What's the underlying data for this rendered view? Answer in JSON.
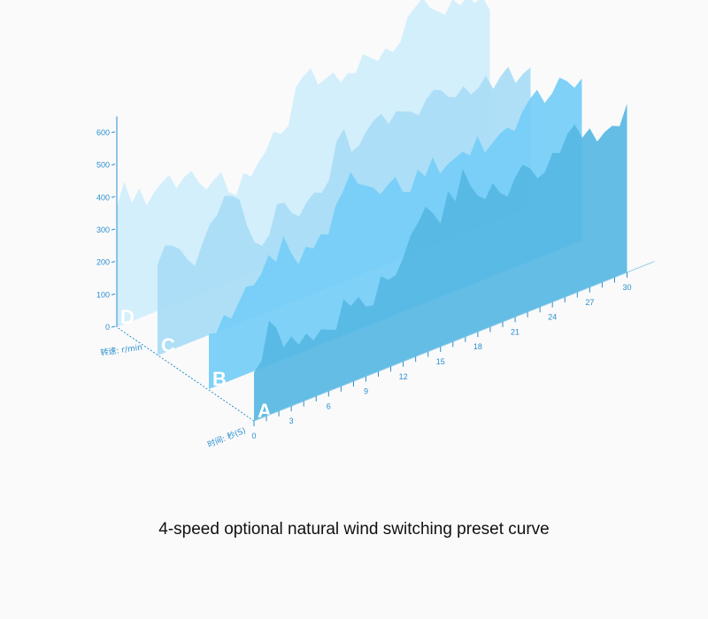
{
  "caption": "4-speed optional natural wind switching preset curve",
  "colors": {
    "axis": "#2a8fd0",
    "series": [
      "#56b7e3",
      "#74cdf6",
      "#a8dcf6",
      "#cfeefb"
    ],
    "letter": "#ffffff",
    "caption": "#111111"
  },
  "chart_data": {
    "type": "area",
    "view": "3d-stacked-depth",
    "ylabel": "转速: r/min",
    "xlabel": "时间: 秒(S)",
    "yticks": [
      0,
      100,
      200,
      300,
      400,
      500,
      600
    ],
    "ylim": [
      0,
      650
    ],
    "xticks": [
      0,
      3,
      6,
      9,
      12,
      15,
      18,
      21,
      24,
      27,
      30
    ],
    "xlim": [
      0,
      30
    ],
    "x": [
      0,
      0.6,
      1.2,
      1.8,
      2.4,
      3,
      3.6,
      4.2,
      4.8,
      5.4,
      6,
      6.6,
      7.2,
      7.8,
      8.4,
      9,
      9.6,
      10.2,
      10.8,
      11.4,
      12,
      12.6,
      13.2,
      13.8,
      14.4,
      15,
      15.6,
      16.2,
      16.8,
      17.4,
      18,
      18.6,
      19.2,
      19.8,
      20.4,
      21,
      21.6,
      22.2,
      22.8,
      23.4,
      24,
      24.6,
      25.2,
      25.8,
      26.4,
      27,
      27.6,
      28.2,
      28.8,
      29.4,
      30
    ],
    "series": [
      {
        "name": "A",
        "values": [
          150,
          175,
          290,
          260,
          190,
          215,
          180,
          205,
          175,
          200,
          190,
          180,
          265,
          235,
          255,
          215,
          210,
          290,
          270,
          275,
          320,
          380,
          410,
          450,
          420,
          380,
          470,
          430,
          520,
          460,
          420,
          400,
          440,
          400,
          380,
          430,
          460,
          440,
          400,
          410,
          460,
          450,
          500,
          520,
          470,
          490,
          440,
          460,
          470,
          460,
          520
        ]
      },
      {
        "name": "B",
        "values": [
          170,
          165,
          210,
          190,
          230,
          270,
          265,
          290,
          340,
          310,
          380,
          320,
          275,
          320,
          305,
          340,
          330,
          410,
          445,
          495,
          450,
          435,
          420,
          390,
          410,
          425,
          370,
          360,
          420,
          390,
          440,
          380,
          400,
          410,
          420,
          400,
          450,
          390,
          410,
          430,
          440,
          420,
          470,
          500,
          520,
          470,
          490,
          530,
          510,
          480,
          500
        ]
      },
      {
        "name": "C",
        "values": [
          280,
          330,
          320,
          300,
          260,
          230,
          290,
          340,
          360,
          410,
          400,
          380,
          290,
          230,
          210,
          235,
          320,
          315,
          275,
          255,
          290,
          310,
          300,
          330,
          440,
          470,
          390,
          400,
          435,
          460,
          470,
          430,
          460,
          450,
          440,
          420,
          460,
          480,
          470,
          440,
          430,
          455,
          420,
          430,
          460,
          410,
          440,
          460,
          400,
          420,
          430
        ]
      },
      {
        "name": "D",
        "values": [
          370,
          440,
          365,
          400,
          340,
          370,
          390,
          405,
          355,
          380,
          390,
          345,
          315,
          335,
          350,
          280,
          260,
          320,
          300,
          335,
          360,
          410,
          395,
          410,
          520,
          545,
          560,
          500,
          510,
          520,
          480,
          500,
          490,
          540,
          520,
          500,
          530,
          510,
          530,
          600,
          620,
          640,
          600,
          580,
          560,
          600,
          570,
          590,
          560,
          570,
          520
        ]
      }
    ]
  }
}
